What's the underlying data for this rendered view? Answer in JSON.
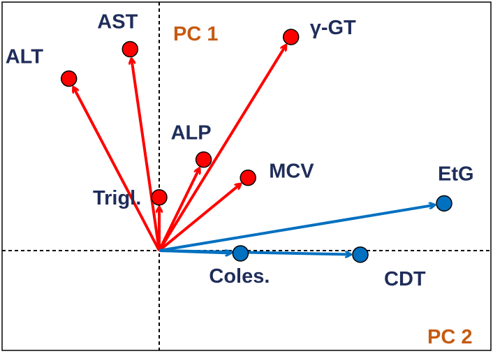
{
  "chart_data": {
    "type": "biplot",
    "title": "",
    "axes": {
      "x_label": "PC 2",
      "y_label": "PC 1",
      "axis_color": "#c55a11"
    },
    "colors": {
      "group_red": "#ff0000",
      "group_blue": "#0070c0",
      "label": "#1f2d5a",
      "frame": "#000000"
    },
    "vectors": [
      {
        "label": "ALT",
        "x": -0.431,
        "y": 0.805,
        "group": "red"
      },
      {
        "label": "AST",
        "x": -0.139,
        "y": 0.943,
        "group": "red"
      },
      {
        "label": "γ-GT",
        "x": 0.629,
        "y": 1.0,
        "group": "red"
      },
      {
        "label": "ALP",
        "x": 0.212,
        "y": 0.426,
        "group": "red"
      },
      {
        "label": "MCV",
        "x": 0.424,
        "y": 0.341,
        "group": "red"
      },
      {
        "label": "Trigl.",
        "x": 0.0,
        "y": 0.249,
        "group": "red"
      },
      {
        "label": "EtG",
        "x": 1.36,
        "y": 0.221,
        "group": "blue"
      },
      {
        "label": "Coles.",
        "x": 0.388,
        "y": -0.013,
        "group": "blue"
      },
      {
        "label": "CDT",
        "x": 0.96,
        "y": -0.019,
        "group": "blue"
      }
    ]
  }
}
